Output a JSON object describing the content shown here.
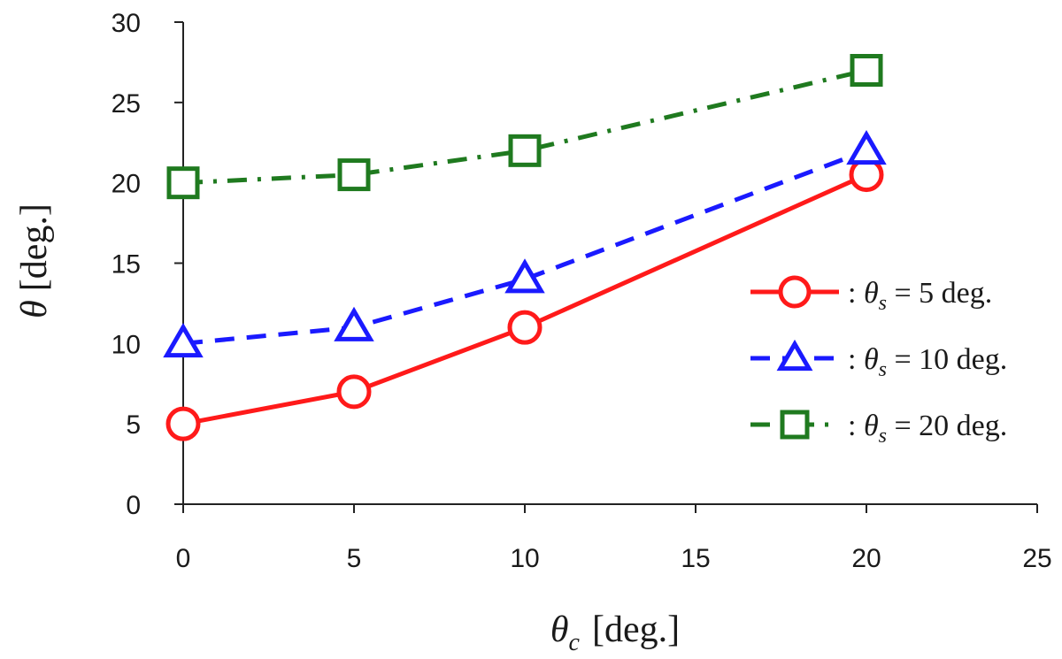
{
  "chart_data": {
    "type": "line",
    "xlabel": {
      "symbol": "θ",
      "subscript": "c",
      "unit": "[deg.]"
    },
    "ylabel": {
      "symbol": "θ",
      "unit": "[deg.]"
    },
    "xlim": [
      0,
      25
    ],
    "ylim": [
      0,
      30
    ],
    "xticks": [
      "0",
      "5",
      "10",
      "15",
      "20",
      "25"
    ],
    "yticks": [
      "0",
      "5",
      "10",
      "15",
      "20",
      "25",
      "30"
    ],
    "grid": false,
    "legend_position": "right",
    "series": [
      {
        "legend_prefix": ": ",
        "legend_symbol": "θ",
        "legend_subscript": "s",
        "legend_suffix": " = 5 deg.",
        "color": "#ff1a1a",
        "line_style": "solid",
        "marker": "circle",
        "x": [
          0,
          5,
          10,
          20
        ],
        "y": [
          5,
          7,
          11,
          20.5
        ]
      },
      {
        "legend_prefix": ": ",
        "legend_symbol": "θ",
        "legend_subscript": "s",
        "legend_suffix": " = 10 deg.",
        "color": "#1a1aff",
        "line_style": "dashed",
        "marker": "triangle",
        "x": [
          0,
          5,
          10,
          20
        ],
        "y": [
          10,
          11,
          14,
          22
        ]
      },
      {
        "legend_prefix": ": ",
        "legend_symbol": "θ",
        "legend_subscript": "s",
        "legend_suffix": " = 20 deg.",
        "color": "#1f7a1f",
        "line_style": "dashdot",
        "marker": "square",
        "x": [
          0,
          5,
          10,
          20
        ],
        "y": [
          20,
          20.5,
          22,
          27
        ]
      }
    ]
  }
}
